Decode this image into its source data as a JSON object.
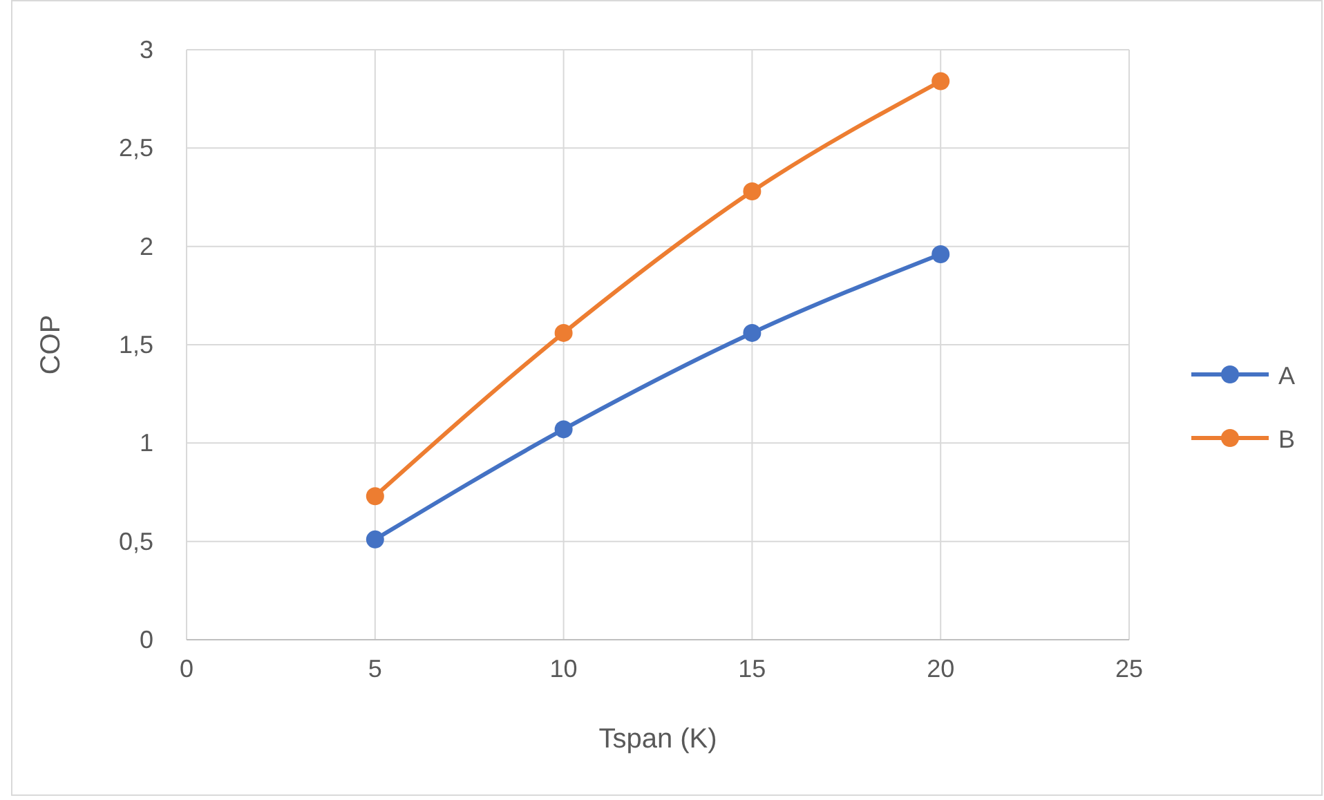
{
  "chart_data": {
    "type": "line",
    "xlabel": "Tspan (K)",
    "ylabel": "COP",
    "x": [
      5,
      10,
      15,
      20
    ],
    "series": [
      {
        "name": "A",
        "color": "#4472c4",
        "values": [
          0.51,
          1.07,
          1.56,
          1.96
        ]
      },
      {
        "name": "B",
        "color": "#ed7d31",
        "values": [
          0.73,
          1.56,
          2.28,
          2.84
        ]
      }
    ],
    "xlim": [
      0,
      25
    ],
    "xticks": [
      0,
      5,
      10,
      15,
      20,
      25
    ],
    "ylim": [
      0,
      3
    ],
    "yticks": [
      0,
      {
        "value": 0.5,
        "label": "0,5"
      },
      1,
      {
        "value": 1.5,
        "label": "1,5"
      },
      2,
      {
        "value": 2.5,
        "label": "2,5"
      },
      3
    ],
    "grid": true,
    "legend": "right",
    "marker": "circle",
    "line_style": "solid"
  }
}
